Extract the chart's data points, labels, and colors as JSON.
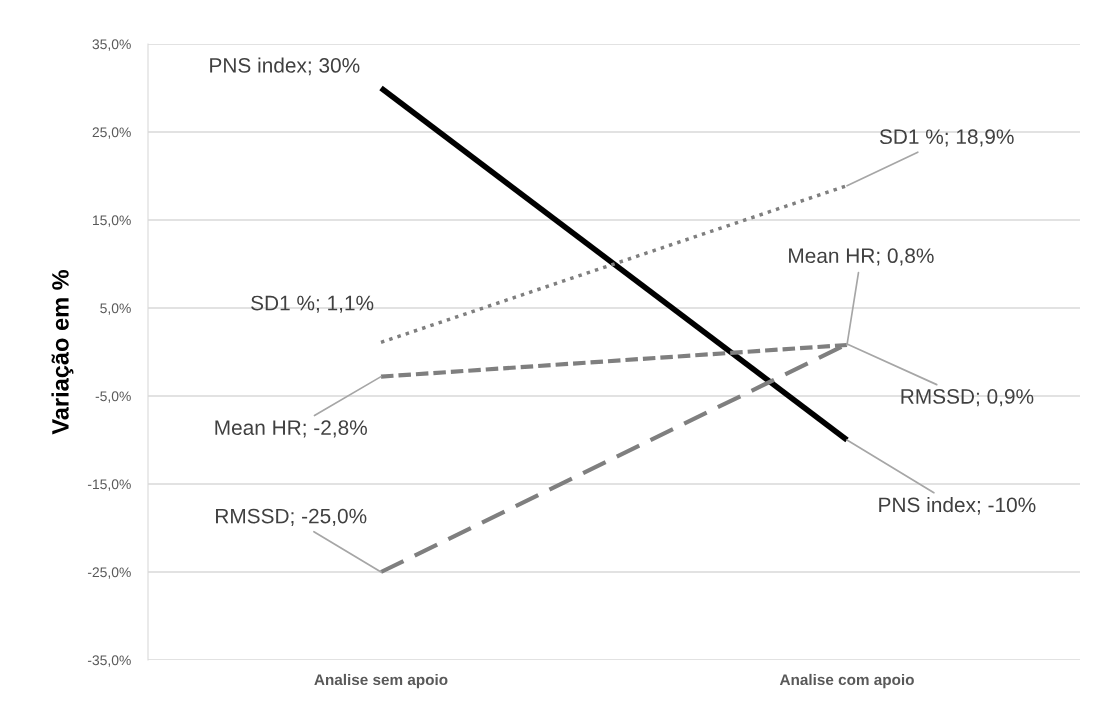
{
  "chart_data": {
    "type": "line",
    "ylabel": "Variação em %",
    "categories": [
      "Analise sem apoio",
      "Analise com apoio"
    ],
    "series": [
      {
        "color": "#000000",
        "line_style": "solid",
        "values": [
          30,
          -10
        ],
        "value_labels": [
          "PNS index; 30%",
          "PNS index; -10%"
        ]
      },
      {
        "color": "#7f7f7f",
        "line_style": "dotted",
        "values": [
          1.1,
          18.9
        ],
        "value_labels": [
          "SD1 %; 1,1%",
          "SD1 %; 18,9%"
        ]
      },
      {
        "color": "#7f7f7f",
        "line_style": "dashed",
        "values": [
          -2.8,
          0.8
        ],
        "value_labels": [
          "Mean HR; -2,8%",
          "Mean HR; 0,8%"
        ]
      },
      {
        "color": "#7f7f7f",
        "line_style": "dashed",
        "values": [
          -25.0,
          0.9
        ],
        "value_labels": [
          "RMSSD; -25,0%",
          "RMSSD; 0,9%"
        ]
      }
    ],
    "ylim": [
      -35,
      35
    ],
    "yticks": [
      {
        "value": -35,
        "label": "-35,0%"
      },
      {
        "value": -25,
        "label": "-25,0%"
      },
      {
        "value": -15,
        "label": "-15,0%"
      },
      {
        "value": -5,
        "label": "-5,0%"
      },
      {
        "value": 5,
        "label": "5,0%"
      },
      {
        "value": 15,
        "label": "15,0%"
      },
      {
        "value": 25,
        "label": "25,0%"
      },
      {
        "value": 35,
        "label": "35,0%"
      }
    ],
    "grid": "y",
    "legend": false,
    "marker": "none"
  }
}
